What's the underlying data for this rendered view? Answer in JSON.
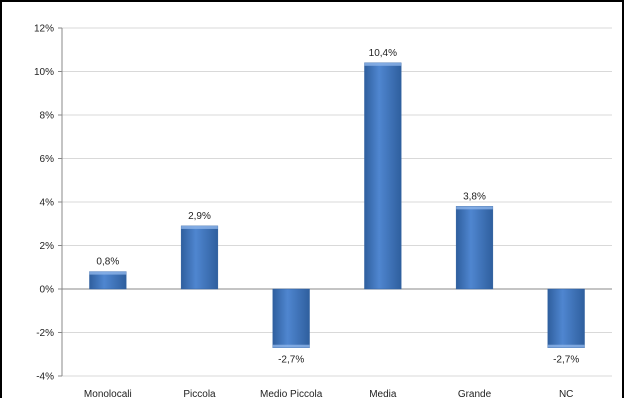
{
  "chart_data": {
    "type": "bar",
    "categories": [
      "Monolocali",
      "Piccola",
      "Medio Piccola",
      "Media",
      "Grande",
      "NC"
    ],
    "values": [
      0.8,
      2.9,
      -2.7,
      10.4,
      3.8,
      -2.7
    ],
    "value_labels": [
      "0,8%",
      "2,9%",
      "-2,7%",
      "10,4%",
      "3,8%",
      "-2,7%"
    ],
    "yticks": [
      12,
      10,
      8,
      6,
      4,
      2,
      0,
      -2,
      -4
    ],
    "ytick_labels": [
      "12%",
      "10%",
      "8%",
      "6%",
      "4%",
      "2%",
      "0%",
      "-2%",
      "-4%"
    ],
    "ylim": [
      -4,
      12
    ],
    "grid": true,
    "legend": "none",
    "bar_color": "#4a7ec9",
    "bar_color_dark": "#2f5f9e",
    "grid_color": "#d9d9d9",
    "title": "",
    "xlabel": "",
    "ylabel": ""
  }
}
